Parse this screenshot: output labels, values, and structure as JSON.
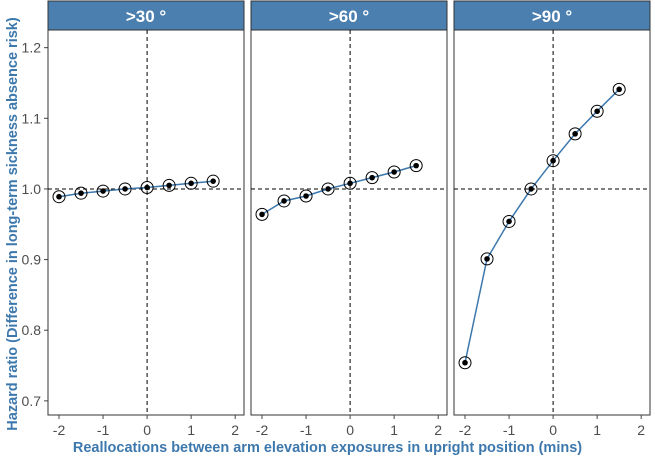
{
  "chart_data": {
    "type": "line",
    "ylabel": "Hazard ratio (Difference in long-term sickness absence risk)",
    "xlabel": "Reallocations between arm elevation exposures in upright position (mins)",
    "x": [
      -2,
      -1.5,
      -1,
      -0.5,
      0,
      0.5,
      1,
      1.5,
      2
    ],
    "xticks": [
      "-2",
      "-1",
      "0",
      "1",
      "2"
    ],
    "yticks": [
      "0.7",
      "0.8",
      "0.9",
      "1.0",
      "1.1",
      "1.2"
    ],
    "xlim": [
      -2.25,
      2.2
    ],
    "ylim": [
      0.68,
      1.225
    ],
    "reference_lines": {
      "x": 0,
      "y": 1.0
    },
    "grid": false,
    "line_color": "#3d78ad",
    "strip_color": "#4a7fb0",
    "panels": [
      {
        "title": ">30 °",
        "values": [
          0.989,
          0.994,
          0.997,
          1.0,
          1.002,
          1.005,
          1.008,
          1.011,
          null
        ]
      },
      {
        "title": ">60 °",
        "values": [
          0.964,
          0.983,
          0.99,
          1.0,
          1.008,
          1.016,
          1.024,
          1.033,
          null
        ]
      },
      {
        "title": ">90 °",
        "values": [
          0.754,
          0.901,
          0.954,
          1.0,
          1.04,
          1.078,
          1.11,
          1.141,
          null
        ]
      }
    ]
  }
}
